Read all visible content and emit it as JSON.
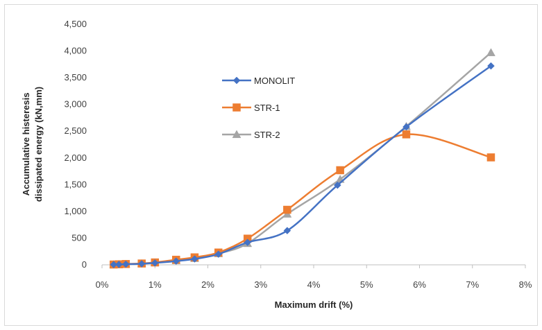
{
  "chart_data": {
    "type": "line",
    "title": "",
    "xlabel": "Maximum drift (%)",
    "ylabel_lines": [
      "Accumulative histeresis",
      "dissipated energy (kN,mm)"
    ],
    "xlim": [
      0,
      8
    ],
    "ylim": [
      0,
      4500
    ],
    "x_ticks": [
      0,
      1,
      2,
      3,
      4,
      5,
      6,
      7,
      8
    ],
    "x_tick_labels": [
      "0%",
      "1%",
      "2%",
      "3%",
      "4%",
      "5%",
      "6%",
      "7%",
      "8%"
    ],
    "y_ticks": [
      0,
      500,
      1000,
      1500,
      2000,
      2500,
      3000,
      3500,
      4000,
      4500
    ],
    "y_tick_labels": [
      "0",
      "500",
      "1,000",
      "1,500",
      "2,000",
      "2,500",
      "3,000",
      "3,500",
      "4,000",
      "4,500"
    ],
    "grid": false,
    "legend_position": "upper-left inside plot",
    "series": [
      {
        "name": "MONOLIT",
        "color": "#4472c4",
        "marker": "diamond",
        "points": [
          [
            0.22,
            5
          ],
          [
            0.32,
            8
          ],
          [
            0.45,
            12
          ],
          [
            0.75,
            20
          ],
          [
            1.0,
            35
          ],
          [
            1.4,
            70
          ],
          [
            1.75,
            110
          ],
          [
            2.2,
            200
          ],
          [
            2.75,
            420
          ],
          [
            3.5,
            640
          ],
          [
            4.45,
            1490
          ],
          [
            5.75,
            2580
          ],
          [
            7.35,
            3720
          ]
        ]
      },
      {
        "name": "STR-1",
        "color": "#ed7d31",
        "marker": "square",
        "points": [
          [
            0.22,
            6
          ],
          [
            0.32,
            10
          ],
          [
            0.45,
            15
          ],
          [
            0.75,
            25
          ],
          [
            1.0,
            45
          ],
          [
            1.4,
            95
          ],
          [
            1.75,
            140
          ],
          [
            2.2,
            230
          ],
          [
            2.75,
            490
          ],
          [
            3.5,
            1030
          ],
          [
            4.5,
            1770
          ],
          [
            5.75,
            2440
          ],
          [
            7.35,
            2010
          ]
        ]
      },
      {
        "name": "STR-2",
        "color": "#a5a5a5",
        "marker": "triangle",
        "points": [
          [
            0.22,
            5
          ],
          [
            0.32,
            9
          ],
          [
            0.45,
            13
          ],
          [
            0.75,
            22
          ],
          [
            1.0,
            40
          ],
          [
            1.4,
            80
          ],
          [
            1.75,
            120
          ],
          [
            2.2,
            210
          ],
          [
            2.75,
            400
          ],
          [
            3.5,
            950
          ],
          [
            4.5,
            1600
          ],
          [
            5.75,
            2590
          ],
          [
            7.35,
            3970
          ]
        ]
      }
    ]
  }
}
